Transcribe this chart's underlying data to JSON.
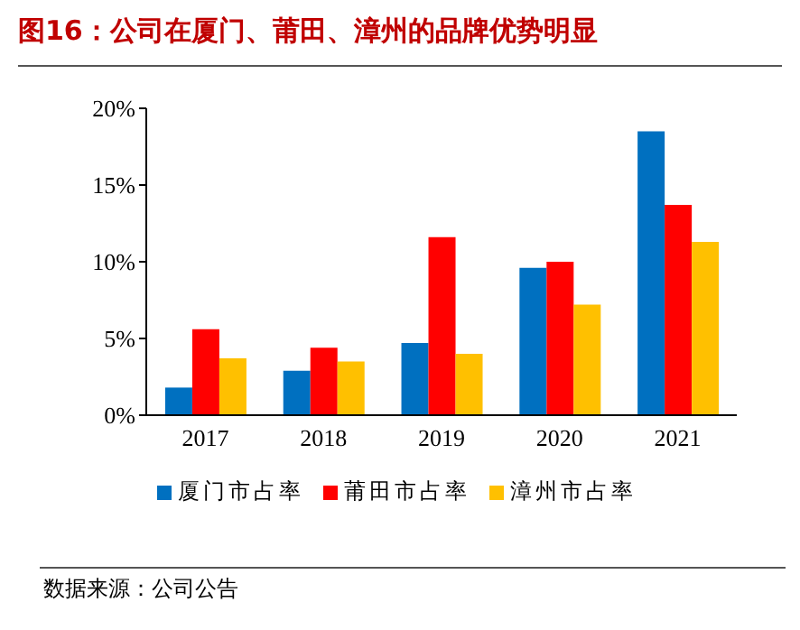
{
  "chart_data": {
    "type": "bar",
    "title": "图16：公司在厦门、莆田、漳州的品牌优势明显",
    "categories": [
      "2017",
      "2018",
      "2019",
      "2020",
      "2021"
    ],
    "series": [
      {
        "name": "厦门市占率",
        "color": "#0070c0",
        "values": [
          1.8,
          2.9,
          4.7,
          9.6,
          18.5
        ]
      },
      {
        "name": "莆田市占率",
        "color": "#ff0000",
        "values": [
          5.6,
          4.4,
          11.6,
          10.0,
          13.7
        ]
      },
      {
        "name": "漳州市占率",
        "color": "#ffc000",
        "values": [
          3.7,
          3.5,
          4.0,
          7.2,
          11.3
        ]
      }
    ],
    "ylim": [
      0,
      20
    ],
    "yticks": [
      {
        "value": 0,
        "label": "0%"
      },
      {
        "value": 5,
        "label": "5%"
      },
      {
        "value": 10,
        "label": "10%"
      },
      {
        "value": 15,
        "label": "15%"
      },
      {
        "value": 20,
        "label": "20%"
      }
    ],
    "legend": "bottom",
    "annotations": [
      "数据来源：公司公告"
    ]
  }
}
